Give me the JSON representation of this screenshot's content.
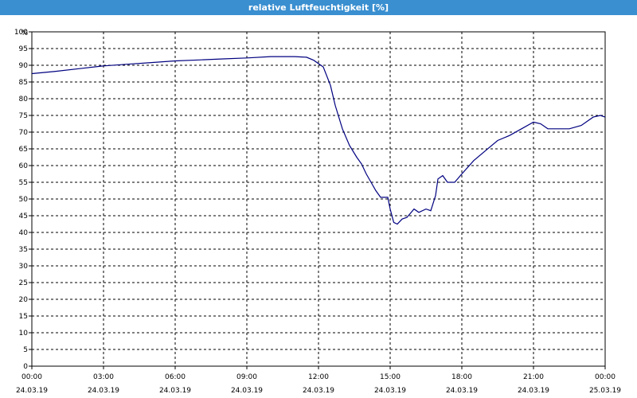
{
  "chart_data": {
    "type": "line",
    "title": "relative Luftfeuchtigkeit [%]",
    "ylabel": "%",
    "xlabel": "",
    "ylim": [
      0,
      100
    ],
    "y_ticks": [
      0,
      5,
      10,
      15,
      20,
      25,
      30,
      35,
      40,
      45,
      50,
      55,
      60,
      65,
      70,
      75,
      80,
      85,
      90,
      95,
      100
    ],
    "x_range_hours": [
      0,
      24
    ],
    "x_ticks": [
      {
        "time": "00:00",
        "date": "24.03.19"
      },
      {
        "time": "03:00",
        "date": "24.03.19"
      },
      {
        "time": "06:00",
        "date": "24.03.19"
      },
      {
        "time": "09:00",
        "date": "24.03.19"
      },
      {
        "time": "12:00",
        "date": "24.03.19"
      },
      {
        "time": "15:00",
        "date": "24.03.19"
      },
      {
        "time": "18:00",
        "date": "24.03.19"
      },
      {
        "time": "21:00",
        "date": "24.03.19"
      },
      {
        "time": "00:00",
        "date": "25.03.19"
      }
    ],
    "grid": true,
    "colors": {
      "line": "#000080",
      "title_bar": "#3a8fd0"
    },
    "series": [
      {
        "points": [
          [
            0.0,
            87.5
          ],
          [
            1.0,
            88.2
          ],
          [
            2.0,
            89.0
          ],
          [
            3.0,
            89.8
          ],
          [
            4.0,
            90.3
          ],
          [
            5.0,
            90.8
          ],
          [
            6.0,
            91.3
          ],
          [
            7.0,
            91.6
          ],
          [
            8.0,
            91.9
          ],
          [
            9.0,
            92.2
          ],
          [
            10.0,
            92.6
          ],
          [
            11.0,
            92.6
          ],
          [
            11.5,
            92.4
          ],
          [
            11.8,
            91.5
          ],
          [
            12.2,
            89.5
          ],
          [
            12.5,
            84.0
          ],
          [
            12.7,
            78.0
          ],
          [
            13.0,
            71.0
          ],
          [
            13.3,
            66.0
          ],
          [
            13.6,
            62.5
          ],
          [
            13.8,
            60.5
          ],
          [
            14.0,
            57.5
          ],
          [
            14.2,
            55.0
          ],
          [
            14.4,
            52.5
          ],
          [
            14.6,
            50.5
          ],
          [
            14.9,
            50.5
          ],
          [
            15.0,
            47.0
          ],
          [
            15.15,
            43.0
          ],
          [
            15.3,
            42.5
          ],
          [
            15.5,
            44.0
          ],
          [
            15.7,
            44.5
          ],
          [
            16.0,
            47.0
          ],
          [
            16.2,
            46.0
          ],
          [
            16.5,
            47.0
          ],
          [
            16.7,
            46.5
          ],
          [
            16.9,
            51.0
          ],
          [
            17.0,
            56.0
          ],
          [
            17.2,
            57.0
          ],
          [
            17.4,
            55.0
          ],
          [
            17.7,
            55.0
          ],
          [
            18.0,
            57.5
          ],
          [
            18.5,
            61.5
          ],
          [
            19.0,
            64.5
          ],
          [
            19.5,
            67.5
          ],
          [
            20.0,
            69.0
          ],
          [
            20.5,
            71.0
          ],
          [
            21.0,
            73.0
          ],
          [
            21.3,
            72.5
          ],
          [
            21.6,
            71.0
          ],
          [
            22.0,
            71.0
          ],
          [
            22.5,
            71.0
          ],
          [
            23.0,
            72.0
          ],
          [
            23.5,
            74.5
          ],
          [
            23.8,
            75.0
          ],
          [
            24.0,
            74.5
          ]
        ]
      }
    ]
  }
}
